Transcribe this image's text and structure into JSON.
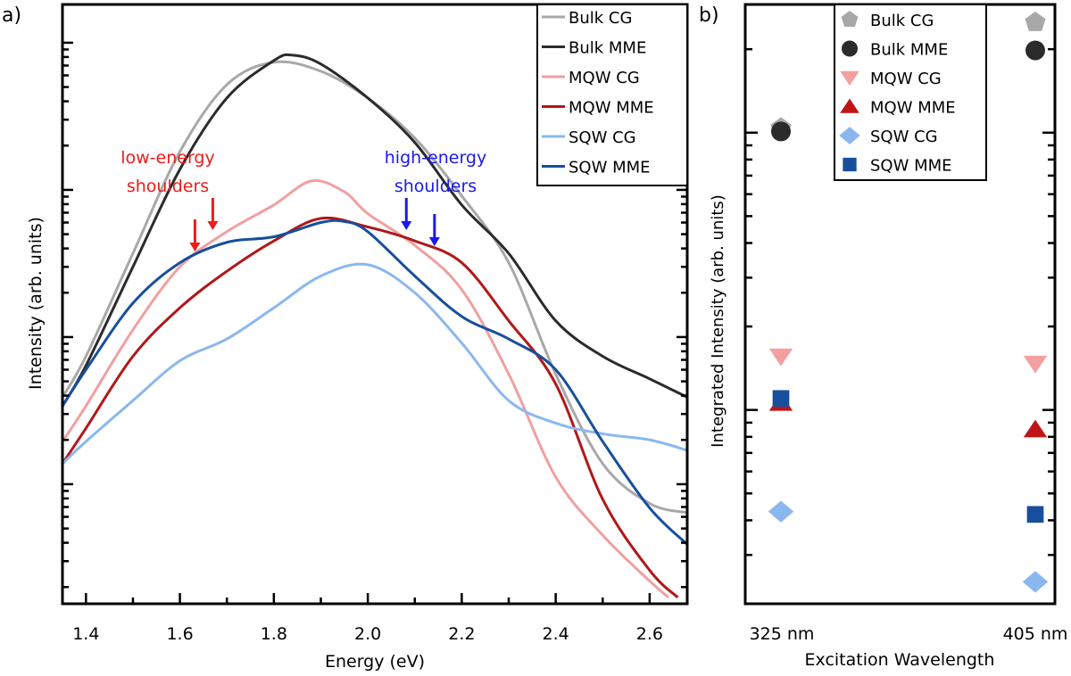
{
  "chart_data": [
    {
      "panel_label": "a)",
      "type": "line",
      "xlabel": "Energy (eV)",
      "ylabel": "Intensity (arb. units)",
      "xlim": [
        1.35,
        2.68
      ],
      "ylim": [
        0.154,
        1820
      ],
      "yscale": "log",
      "x_tick_labels": [
        "1.4",
        "1.6",
        "1.8",
        "2.0",
        "2.2",
        "2.4",
        "2.6"
      ],
      "y_tick_labels_shown": false,
      "legend_position": "top-right",
      "grid": false,
      "series": [
        {
          "name": "Bulk CG",
          "color": "#a8a8a8",
          "x": [
            1.35,
            1.4,
            1.5,
            1.6,
            1.7,
            1.8,
            1.9,
            2.0,
            2.1,
            2.2,
            2.3,
            2.4,
            2.5,
            2.6,
            2.68
          ],
          "y": [
            3.9,
            7.4,
            37,
            182,
            519,
            736,
            640,
            421,
            225,
            91,
            32,
            5.6,
            1.38,
            0.74,
            0.64
          ]
        },
        {
          "name": "Bulk MME",
          "color": "#2b2b2b",
          "x": [
            1.35,
            1.4,
            1.5,
            1.6,
            1.7,
            1.8,
            1.84,
            1.9,
            2.0,
            2.1,
            2.2,
            2.3,
            2.4,
            2.5,
            2.6,
            2.68
          ],
          "y": [
            3.4,
            6.4,
            30,
            138,
            421,
            757,
            823,
            716,
            421,
            210,
            79,
            37,
            12.9,
            7.4,
            5.2,
            3.9
          ]
        },
        {
          "name": "MQW CG",
          "color": "#f0a0a0",
          "x": [
            1.35,
            1.4,
            1.5,
            1.6,
            1.7,
            1.8,
            1.88,
            1.95,
            2.0,
            2.1,
            2.2,
            2.3,
            2.4,
            2.5,
            2.6,
            2.64
          ],
          "y": [
            1.95,
            3.4,
            11.2,
            30,
            52,
            79,
            115,
            97,
            69,
            42,
            21,
            5.6,
            1.12,
            0.45,
            0.22,
            0.17
          ]
        },
        {
          "name": "MQW MME",
          "color": "#b01818",
          "x": [
            1.35,
            1.4,
            1.5,
            1.6,
            1.7,
            1.8,
            1.9,
            2.0,
            2.1,
            2.2,
            2.3,
            2.4,
            2.5,
            2.6,
            2.66
          ],
          "y": [
            1.38,
            2.4,
            7.4,
            15.8,
            28,
            45,
            64,
            56,
            45,
            32,
            12.9,
            4.8,
            0.79,
            0.26,
            0.17
          ]
        },
        {
          "name": "SQW CG",
          "color": "#8ab8ee",
          "x": [
            1.35,
            1.4,
            1.5,
            1.6,
            1.7,
            1.8,
            1.9,
            2.0,
            2.1,
            2.2,
            2.3,
            2.4,
            2.5,
            2.6,
            2.68
          ],
          "y": [
            1.38,
            1.95,
            3.7,
            6.9,
            9.7,
            15.8,
            26,
            31,
            20,
            9.1,
            3.7,
            2.6,
            2.2,
            2.0,
            1.7
          ]
        },
        {
          "name": "SQW MME",
          "color": "#174f9c",
          "x": [
            1.35,
            1.4,
            1.5,
            1.6,
            1.7,
            1.8,
            1.9,
            1.95,
            2.0,
            2.1,
            2.2,
            2.3,
            2.4,
            2.5,
            2.6,
            2.68
          ],
          "y": [
            3.4,
            6.0,
            17,
            32,
            44,
            48,
            60,
            61,
            52,
            26,
            13.8,
            9.7,
            6.0,
            1.95,
            0.69,
            0.39
          ]
        }
      ],
      "annotations": [
        {
          "text_lines": [
            "low-energy",
            "shoulders"
          ],
          "color": "#ee1c1c",
          "arrows_x": [
            1.632,
            1.67
          ]
        },
        {
          "text_lines": [
            "high-energy",
            "shoulders"
          ],
          "color": "#1a1aee",
          "arrows_x": [
            2.082,
            2.142
          ]
        }
      ]
    },
    {
      "panel_label": "b)",
      "type": "scatter",
      "xlabel": "Excitation Wavelength",
      "ylabel": "Integrated Intensity (arb. units)",
      "categories": [
        "325 nm",
        "405 nm"
      ],
      "yscale": "log",
      "ylim": [
        0.2,
        29
      ],
      "y_tick_labels_shown": false,
      "legend_position": "top-center",
      "grid": false,
      "series": [
        {
          "name": "Bulk CG",
          "marker": "pentagon",
          "color": "#a8a8a8",
          "values": [
            10.4,
            25
          ]
        },
        {
          "name": "Bulk MME",
          "marker": "circle",
          "color": "#2b2b2b",
          "values": [
            10.1,
            19.8
          ]
        },
        {
          "name": "MQW CG",
          "marker": "triangle-down",
          "color": "#f4a0a0",
          "values": [
            1.56,
            1.47
          ]
        },
        {
          "name": "MQW MME",
          "marker": "triangle-up",
          "color": "#c01515",
          "values": [
            1.06,
            0.85
          ]
        },
        {
          "name": "SQW CG",
          "marker": "diamond",
          "color": "#8ab8ee",
          "values": [
            0.43,
            0.24
          ]
        },
        {
          "name": "SQW MME",
          "marker": "square",
          "color": "#174f9c",
          "values": [
            1.1,
            0.42
          ]
        }
      ]
    }
  ]
}
